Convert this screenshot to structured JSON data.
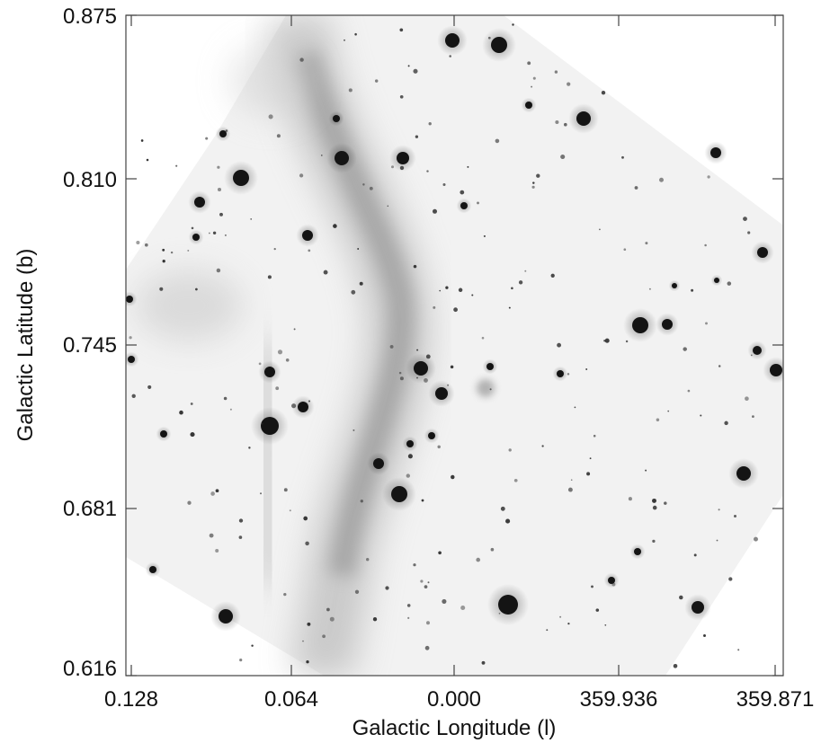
{
  "figure": {
    "x_axis_title": "Galactic Longitude (l)",
    "y_axis_title": "Galactic Latitude (b)",
    "x_tick_labels": [
      "0.128",
      "0.064",
      "0.000",
      "359.936",
      "359.871"
    ],
    "y_tick_labels": [
      "0.875",
      "0.810",
      "0.745",
      "0.681",
      "0.616"
    ],
    "image_description_icon": "grayscale-infrared-sky-image",
    "colors": {
      "background": "#ffffff",
      "image_base": "#f1f1f1",
      "stars": "#141414",
      "frame": "#444444"
    }
  }
}
